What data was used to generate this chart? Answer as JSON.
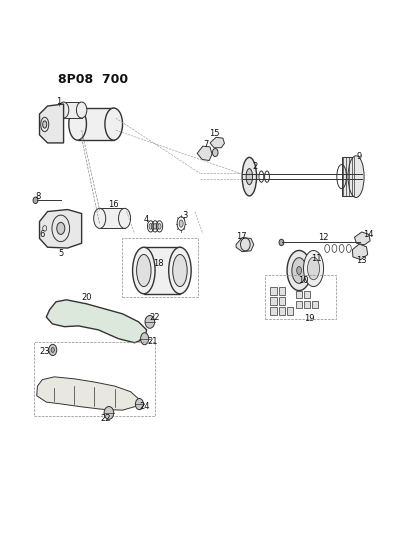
{
  "title": "8P08  700",
  "bg_color": "#ffffff",
  "line_color": "#333333",
  "label_color": "#222222",
  "figsize": [
    4.04,
    5.33
  ],
  "dpi": 100
}
